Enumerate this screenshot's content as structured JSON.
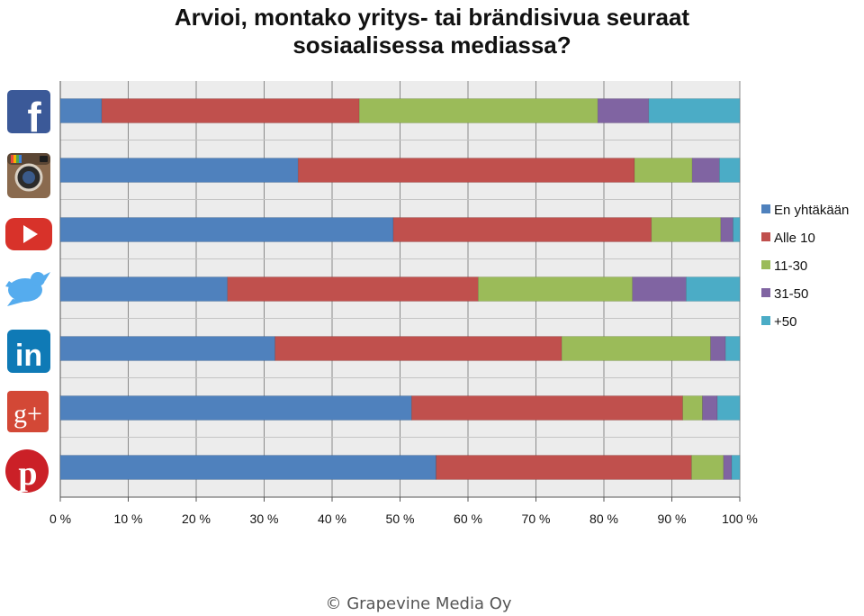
{
  "chart_data": {
    "type": "bar",
    "orientation": "horizontal",
    "stacked": true,
    "title": [
      "Arvioi, montako yritys- tai brändisivua seuraat",
      "sosiaalisessa mediassa?"
    ],
    "categories": [
      "Facebook",
      "Instagram",
      "YouTube",
      "Twitter",
      "LinkedIn",
      "Google+",
      "Pinterest"
    ],
    "category_icons": [
      "facebook-icon",
      "instagram-icon",
      "youtube-icon",
      "twitter-icon",
      "linkedin-icon",
      "google-plus-icon",
      "pinterest-icon"
    ],
    "series": [
      {
        "name": "En yhtäkään",
        "color": "#4f81bd",
        "values": [
          6.1,
          35,
          49,
          24.6,
          31.6,
          51.7,
          55.3
        ]
      },
      {
        "name": "Alle 10",
        "color": "#c0504d",
        "values": [
          37.9,
          49.5,
          38,
          36.9,
          42.2,
          39.9,
          37.6
        ]
      },
      {
        "name": "11-30",
        "color": "#9bbb59",
        "values": [
          35.1,
          8.5,
          10.2,
          22.7,
          21.9,
          2.9,
          4.7
        ]
      },
      {
        "name": "31-50",
        "color": "#8064a2",
        "values": [
          7.5,
          4,
          1.8,
          7.9,
          2.2,
          2.2,
          1.2
        ]
      },
      {
        "name": "+50",
        "color": "#4bacc6",
        "values": [
          13.4,
          3,
          1,
          7.9,
          2.1,
          3.3,
          1.2
        ]
      }
    ],
    "xlim": [
      0,
      100
    ],
    "xticks": [
      "0 %",
      "10 %",
      "20 %",
      "30 %",
      "40 %",
      "50 %",
      "60 %",
      "70 %",
      "80 %",
      "90 %",
      "100 %"
    ],
    "grid": true,
    "legend": "right"
  },
  "footer": "© Grapevine Media Oy"
}
